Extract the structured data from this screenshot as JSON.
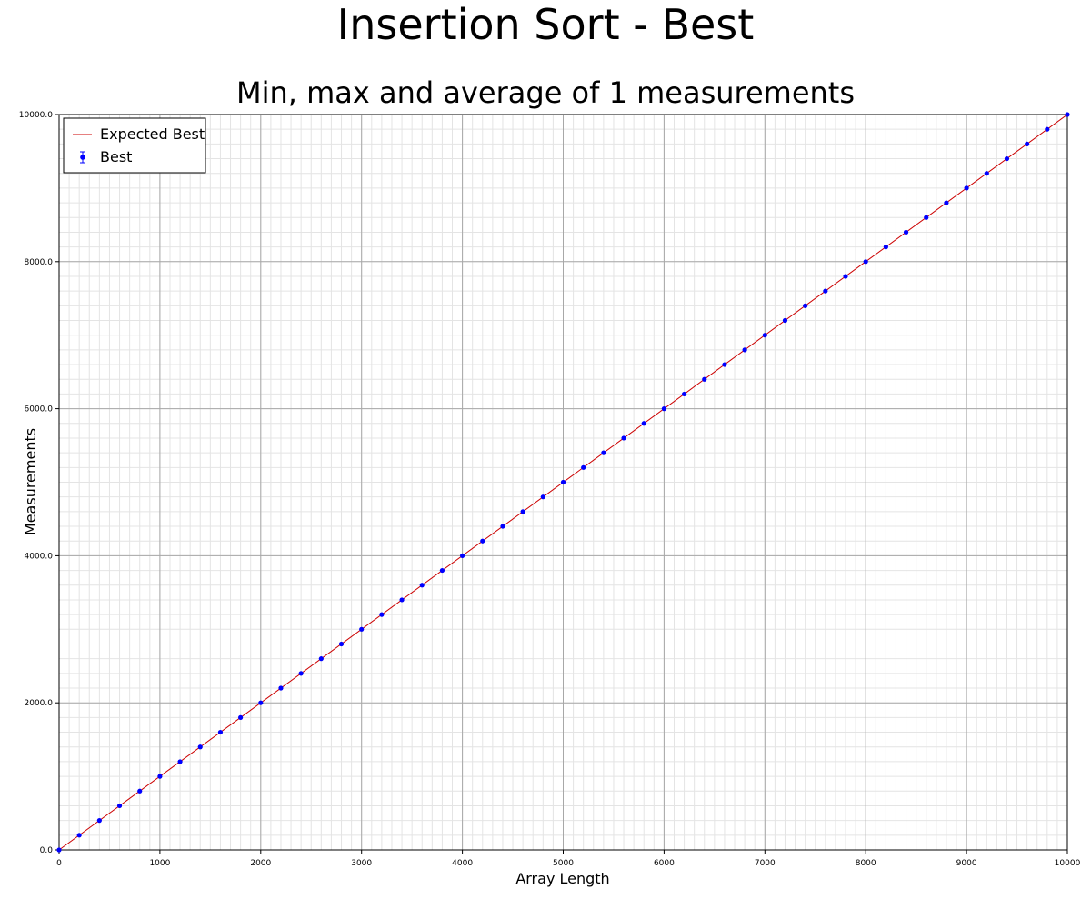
{
  "chart_data": {
    "type": "scatter",
    "title": "Insertion Sort - Best",
    "subtitle": "Min, max and average of 1 measurements",
    "xlabel": "Array Length",
    "ylabel": "Measurements",
    "xlim": [
      0,
      10000
    ],
    "ylim": [
      0,
      10000
    ],
    "x_ticks": [
      0,
      1000,
      2000,
      3000,
      4000,
      5000,
      6000,
      7000,
      8000,
      9000,
      10000
    ],
    "x_tick_labels": [
      "0",
      "1000",
      "2000",
      "3000",
      "4000",
      "5000",
      "6000",
      "7000",
      "8000",
      "9000",
      "10000"
    ],
    "y_ticks": [
      0,
      2000,
      4000,
      6000,
      8000,
      10000
    ],
    "y_tick_labels": [
      "0.0",
      "2000.0",
      "4000.0",
      "6000.0",
      "8000.0",
      "10000.0"
    ],
    "grid": true,
    "legend_position": "top-left",
    "series": [
      {
        "name": "Expected Best",
        "kind": "line",
        "color": "#cc0000",
        "x": [
          0,
          10000
        ],
        "y": [
          0,
          10000
        ]
      },
      {
        "name": "Best",
        "kind": "errorbar-points",
        "color": "#0000ff",
        "x": [
          0,
          200,
          400,
          600,
          800,
          1000,
          1200,
          1400,
          1600,
          1800,
          2000,
          2200,
          2400,
          2600,
          2800,
          3000,
          3200,
          3400,
          3600,
          3800,
          4000,
          4200,
          4400,
          4600,
          4800,
          5000,
          5200,
          5400,
          5600,
          5800,
          6000,
          6200,
          6400,
          6600,
          6800,
          7000,
          7200,
          7400,
          7600,
          7800,
          8000,
          8200,
          8400,
          8600,
          8800,
          9000,
          9200,
          9400,
          9600,
          9800,
          10000
        ],
        "y": [
          0,
          200,
          400,
          600,
          800,
          1000,
          1200,
          1400,
          1600,
          1800,
          2000,
          2200,
          2400,
          2600,
          2800,
          3000,
          3200,
          3400,
          3600,
          3800,
          4000,
          4200,
          4400,
          4600,
          4800,
          5000,
          5200,
          5400,
          5600,
          5800,
          6000,
          6200,
          6400,
          6600,
          6800,
          7000,
          7200,
          7400,
          7600,
          7800,
          8000,
          8200,
          8400,
          8600,
          8800,
          9000,
          9200,
          9400,
          9600,
          9800,
          10000
        ]
      }
    ]
  }
}
